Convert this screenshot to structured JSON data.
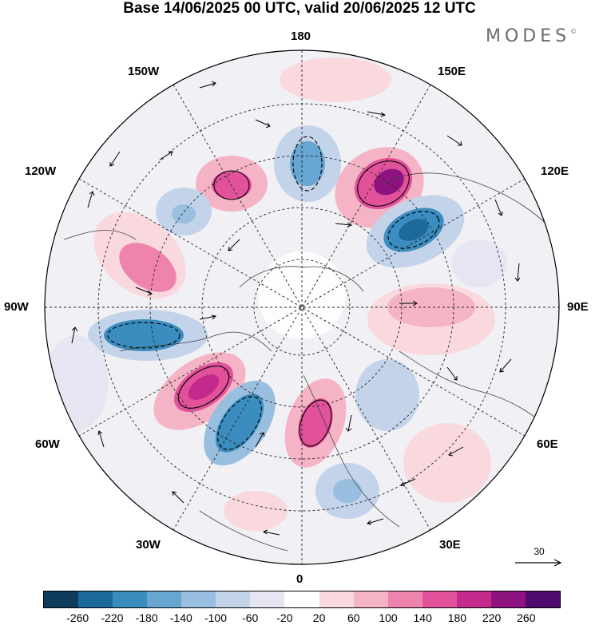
{
  "title": "Base 14/06/2025 00 UTC, valid 20/06/2025 12 UTC",
  "logo": "MODES",
  "logo_mark": "©",
  "longitude_labels": {
    "top": "180",
    "bottom": "0",
    "left": "90W",
    "right": "90E",
    "upper_left": "150W",
    "upper_right": "150E",
    "mid_upper_left": "120W",
    "mid_upper_right": "120E",
    "mid_lower_left": "60W",
    "mid_lower_right": "60E",
    "lower_left": "30W",
    "lower_right": "30E"
  },
  "reference_vector": {
    "value": "30"
  },
  "colorbar": {
    "colors": [
      "#0f3b5c",
      "#1c6a99",
      "#3b8dbf",
      "#66a6d1",
      "#98bfe0",
      "#c3d3ea",
      "#e5e6f2",
      "#ffffff",
      "#f9d9dd",
      "#f5b3c6",
      "#ee83ae",
      "#e2529b",
      "#c42a8b",
      "#8e1380",
      "#4e0a6e"
    ],
    "tick_labels": [
      "-260",
      "-220",
      "-180",
      "-140",
      "-100",
      "-60",
      "-20",
      "20",
      "60",
      "100",
      "140",
      "180",
      "220",
      "260"
    ]
  }
}
